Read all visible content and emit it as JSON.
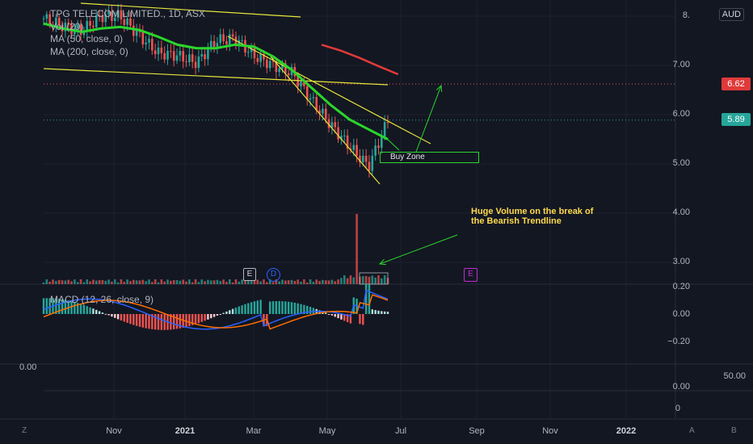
{
  "legend": {
    "title": "TPG TELECOM LIMITED., 1D, ASX",
    "vol": "Vol (20)",
    "ma50": "MA (50, close, 0)",
    "ma200": "MA (200, close, 0)"
  },
  "currency": "AUD",
  "macd_legend": "MACD (12, 26, close, 9)",
  "price_tags": {
    "upper": "6.62",
    "current": "5.89"
  },
  "price_axis": [
    "8.",
    "7.00",
    "6.00",
    "5.00",
    "4.00",
    "3.00",
    "0.20"
  ],
  "macd_axis": [
    "0.00",
    "−0.20"
  ],
  "lower_axis": [
    "0.00",
    "0"
  ],
  "left_axis": "0.00",
  "right_extra": "50.00",
  "time_axis": [
    "Nov",
    "2021",
    "Mar",
    "May",
    "Jul",
    "Sep",
    "Nov",
    "2022"
  ],
  "corner_labels": {
    "left": "Z",
    "a": "A",
    "b": "B"
  },
  "markers": {
    "e1": "E",
    "d": "D",
    "e2": "E"
  },
  "annotation": {
    "line1": "Huge Volume on the break of",
    "line2": "the Bearish Trendline"
  },
  "buy_zone": "Buy Zone",
  "colors": {
    "background": "#131722",
    "up": "#26a69a",
    "down": "#ef5350",
    "ma50": "#2bd62b",
    "ma200": "#e03a3a",
    "trendline": "#e6e63b",
    "annotation": "#ffd94d",
    "macd": "#2962ff",
    "signal": "#ff6d00"
  },
  "chart_data": {
    "type": "line",
    "symbol": "TPG",
    "interval": "1D",
    "x": [
      "2020-10-05",
      "2020-10-19",
      "2020-11-02",
      "2020-11-16",
      "2020-11-30",
      "2020-12-14",
      "2020-12-28",
      "2021-01-11",
      "2021-01-25",
      "2021-02-08",
      "2021-02-22",
      "2021-03-08",
      "2021-03-22",
      "2021-04-05",
      "2021-04-19",
      "2021-05-03",
      "2021-05-17",
      "2021-05-31",
      "2021-06-14"
    ],
    "series": [
      {
        "values": [
          7.95,
          7.8,
          7.7,
          8.0,
          8.0,
          7.6,
          7.25,
          7.2,
          7.05,
          7.5,
          7.55,
          7.2,
          7.0,
          6.85,
          6.3,
          5.8,
          5.35,
          4.95,
          5.88
        ]
      },
      {
        "values": [
          7.85,
          7.75,
          7.68,
          7.75,
          7.78,
          7.72,
          7.58,
          7.42,
          7.35,
          7.35,
          7.42,
          7.38,
          7.18,
          6.9,
          6.55,
          6.2,
          5.9,
          5.7,
          5.5
        ]
      },
      {
        "values": [
          null,
          null,
          null,
          null,
          null,
          null,
          null,
          null,
          null,
          null,
          null,
          null,
          7.42,
          7.3,
          7.15,
          6.98,
          6.82,
          null,
          null
        ]
      }
    ],
    "ylim": [
      2.8,
      8.4
    ],
    "price_lines": [
      6.62,
      5.89
    ]
  }
}
